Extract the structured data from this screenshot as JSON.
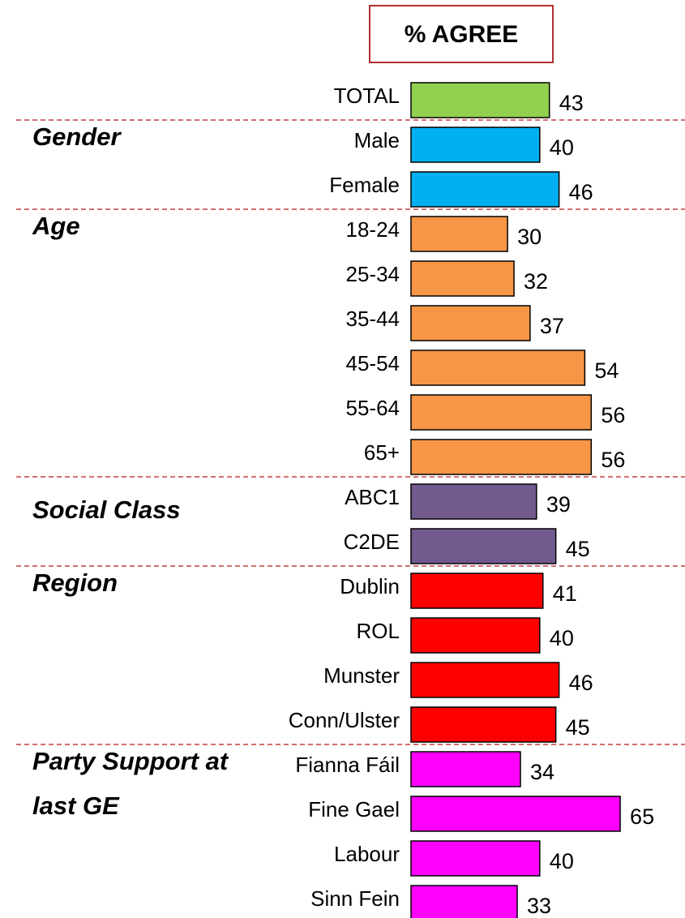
{
  "chart_data": {
    "type": "bar",
    "orientation": "horizontal",
    "title": "% AGREE",
    "groups": [
      {
        "color": "#92d050",
        "categories": [
          "TOTAL"
        ],
        "values": [
          43
        ]
      },
      {
        "name": "Gender",
        "color": "#00b0f0",
        "categories": [
          "Male",
          "Female"
        ],
        "values": [
          40,
          46
        ]
      },
      {
        "name": "Age",
        "color": "#f79646",
        "categories": [
          "18-24",
          "25-34",
          "35-44",
          "45-54",
          "55-64",
          "65+"
        ],
        "values": [
          30,
          32,
          37,
          54,
          56,
          56
        ]
      },
      {
        "name": "Social Class",
        "color": "#725a8f",
        "categories": [
          "ABC1",
          "C2DE"
        ],
        "values": [
          39,
          45
        ]
      },
      {
        "name": "Region",
        "color": "#ff0000",
        "categories": [
          "Dublin",
          "ROL",
          "Munster",
          "Conn/Ulster"
        ],
        "values": [
          41,
          40,
          46,
          45
        ]
      },
      {
        "name": "Party Support at last GE",
        "color": "#ff00ff",
        "categories": [
          "Fianna Fáil",
          "Fine Gael",
          "Labour",
          "Sinn Fein"
        ],
        "values": [
          34,
          65,
          40,
          33
        ]
      }
    ]
  }
}
